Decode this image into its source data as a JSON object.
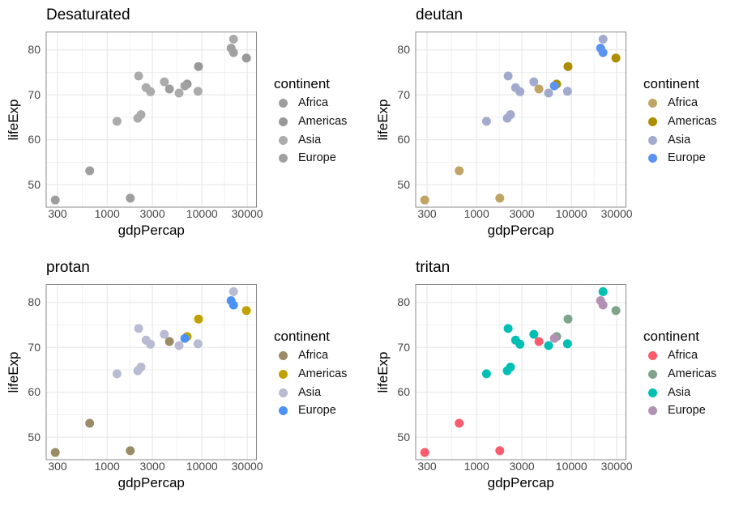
{
  "figure_title": "",
  "chart_data": {
    "type": "scatter",
    "xlabel": "gdpPercap",
    "ylabel": "lifeExp",
    "x_scale": "log10",
    "x_ticks": [
      "300",
      "1000",
      "3000",
      "10000",
      "30000"
    ],
    "x_tick_values": [
      300,
      1000,
      3000,
      10000,
      30000
    ],
    "x_minor_values": [
      548,
      1732,
      5477,
      17321
    ],
    "y_ticks": [
      "50",
      "60",
      "70",
      "80"
    ],
    "y_tick_values": [
      50,
      60,
      70,
      80
    ],
    "y_minor_values": [
      55,
      65,
      75
    ],
    "xlim": [
      227,
      37600
    ],
    "ylim": [
      45,
      84
    ],
    "grid": true,
    "legend": {
      "title": "continent",
      "position": "right",
      "entries": [
        "Africa",
        "Americas",
        "Asia",
        "Europe"
      ]
    },
    "panels": [
      {
        "title": "Desaturated",
        "palette": {
          "Africa": "#9e9e9e",
          "Americas": "#999999",
          "Asia": "#ababab",
          "Europe": "#a1a1a1"
        }
      },
      {
        "title": "deutan",
        "palette": {
          "Africa": "#bfa463",
          "Americas": "#af8d00",
          "Asia": "#a2aacd",
          "Europe": "#5b93f2"
        }
      },
      {
        "title": "protan",
        "palette": {
          "Africa": "#9a8c66",
          "Americas": "#bfa303",
          "Asia": "#b8bbd1",
          "Europe": "#4c92f6"
        }
      },
      {
        "title": "tritan",
        "palette": {
          "Africa": "#fb5c6d",
          "Americas": "#80a38b",
          "Asia": "#00bfb3",
          "Europe": "#b391b5"
        }
      }
    ],
    "points": [
      {
        "continent": "Asia",
        "gdpPercap": 1270,
        "lifeExp": 64.1
      },
      {
        "continent": "Asia",
        "gdpPercap": 2105,
        "lifeExp": 64.8
      },
      {
        "continent": "Asia",
        "gdpPercap": 2275,
        "lifeExp": 65.6
      },
      {
        "continent": "Asia",
        "gdpPercap": 2148,
        "lifeExp": 74.2
      },
      {
        "continent": "Asia",
        "gdpPercap": 2577,
        "lifeExp": 71.6
      },
      {
        "continent": "Asia",
        "gdpPercap": 2865,
        "lifeExp": 70.7
      },
      {
        "continent": "Asia",
        "gdpPercap": 4010,
        "lifeExp": 72.9
      },
      {
        "continent": "Asia",
        "gdpPercap": 5740,
        "lifeExp": 70.4
      },
      {
        "continent": "Asia",
        "gdpPercap": 9080,
        "lifeExp": 70.8
      },
      {
        "continent": "Asia",
        "gdpPercap": 21500,
        "lifeExp": 82.4
      },
      {
        "continent": "Africa",
        "gdpPercap": 284,
        "lifeExp": 46.6
      },
      {
        "continent": "Africa",
        "gdpPercap": 655,
        "lifeExp": 53.1
      },
      {
        "continent": "Africa",
        "gdpPercap": 1754,
        "lifeExp": 47.0
      },
      {
        "continent": "Africa",
        "gdpPercap": 4540,
        "lifeExp": 71.3
      },
      {
        "continent": "Americas",
        "gdpPercap": 6990,
        "lifeExp": 72.4
      },
      {
        "continent": "Americas",
        "gdpPercap": 9200,
        "lifeExp": 76.3
      },
      {
        "continent": "Americas",
        "gdpPercap": 29400,
        "lifeExp": 78.2
      },
      {
        "continent": "Europe",
        "gdpPercap": 6590,
        "lifeExp": 72.0
      },
      {
        "continent": "Europe",
        "gdpPercap": 21500,
        "lifeExp": 79.4
      },
      {
        "continent": "Europe",
        "gdpPercap": 20300,
        "lifeExp": 80.4
      }
    ],
    "style": {
      "panel_background": "#ffffff",
      "grid_major_color": "#e7e7e7",
      "grid_minor_color": "#eeeeee",
      "panel_border_color": "#8a8a8a",
      "tick_label_color": "#454545",
      "text_color": "#000000",
      "point_radius": 5.5
    }
  }
}
